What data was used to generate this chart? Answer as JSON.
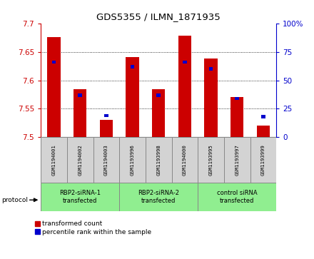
{
  "title": "GDS5355 / ILMN_1871935",
  "samples": [
    "GSM1194001",
    "GSM1194002",
    "GSM1194003",
    "GSM1193996",
    "GSM1193998",
    "GSM1194000",
    "GSM1193995",
    "GSM1193997",
    "GSM1193999"
  ],
  "red_values": [
    7.676,
    7.585,
    7.531,
    7.641,
    7.584,
    7.678,
    7.638,
    7.571,
    7.521
  ],
  "blue_values": [
    66,
    37,
    19,
    62,
    37,
    66,
    60,
    34,
    18
  ],
  "ylim_left": [
    7.5,
    7.7
  ],
  "ylim_right": [
    0,
    100
  ],
  "yticks_left": [
    7.5,
    7.55,
    7.6,
    7.65,
    7.7
  ],
  "yticks_right": [
    0,
    25,
    50,
    75,
    100
  ],
  "groups": [
    {
      "label": "RBP2-siRNA-1\ntransfected",
      "start": 0,
      "end": 3
    },
    {
      "label": "RBP2-siRNA-2\ntransfected",
      "start": 3,
      "end": 6
    },
    {
      "label": "control siRNA\ntransfected",
      "start": 6,
      "end": 9
    }
  ],
  "group_bg_color": "#90EE90",
  "sample_bg_color": "#D3D3D3",
  "red_color": "#CC0000",
  "blue_color": "#0000CC",
  "bar_width": 0.5,
  "legend_red": "transformed count",
  "legend_blue": "percentile rank within the sample",
  "protocol_label": "protocol"
}
